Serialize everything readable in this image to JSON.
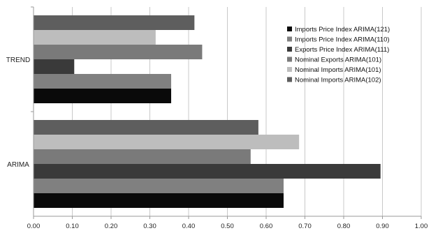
{
  "chart_data": {
    "type": "bar",
    "orientation": "horizontal",
    "title": "",
    "xlabel": "",
    "ylabel": "",
    "xlim": [
      0,
      1.0
    ],
    "x_ticks": [
      "0.00",
      "0.10",
      "0.20",
      "0.30",
      "0.40",
      "0.50",
      "0.60",
      "0.70",
      "0.80",
      "0.90",
      "1.00"
    ],
    "grid": true,
    "legend_position": "top-right",
    "categories": [
      "ARIMA",
      "TREND"
    ],
    "series": [
      {
        "name": "Imports Price Index ARIMA(121)",
        "color": "#0a0a0a",
        "values": [
          0.645,
          0.355
        ]
      },
      {
        "name": "Imports Price Index ARIMA(110)",
        "color": "#808080",
        "values": [
          0.645,
          0.355
        ]
      },
      {
        "name": "Exports Price Index ARIMA(111)",
        "color": "#3a3a3a",
        "values": [
          0.895,
          0.105
        ]
      },
      {
        "name": "Nominal Exports ARIMA(101)",
        "color": "#7a7a7a",
        "values": [
          0.56,
          0.435
        ]
      },
      {
        "name": "Nominal Imports ARIMA(101)",
        "color": "#bdbdbd",
        "values": [
          0.685,
          0.315
        ]
      },
      {
        "name": "Nominal Imports ARIMA(102)",
        "color": "#5e5e5e",
        "values": [
          0.58,
          0.415
        ]
      }
    ]
  }
}
